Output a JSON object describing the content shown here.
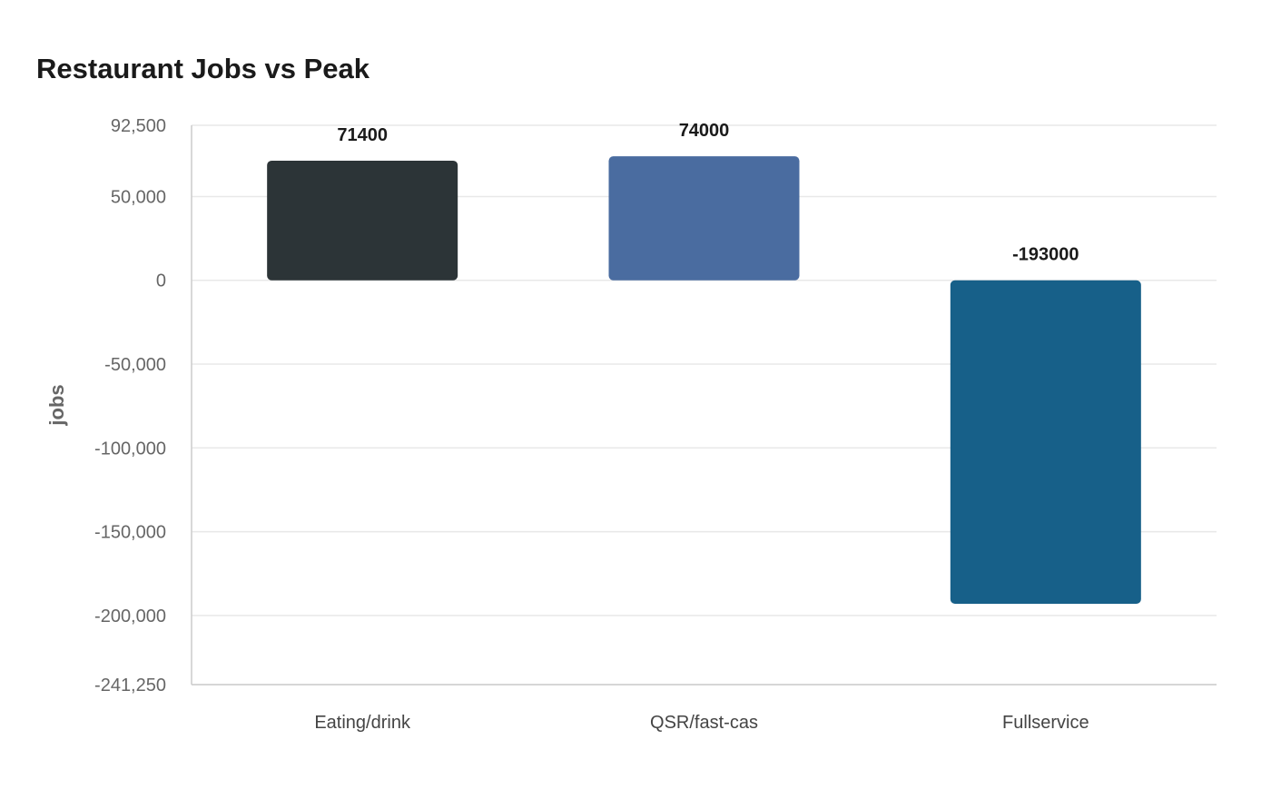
{
  "chart_data": {
    "type": "bar",
    "title": "Restaurant Jobs vs Peak",
    "xlabel": "",
    "ylabel": "jobs",
    "categories": [
      "Eating/drink",
      "QSR/fast-cas",
      "Fullservice"
    ],
    "values": [
      71400,
      74000,
      -193000
    ],
    "data_labels": [
      "71400",
      "74000",
      "-193000"
    ],
    "colors": [
      "#2c3437",
      "#4a6ca0",
      "#176089"
    ],
    "ylim": [
      -241250,
      92500
    ],
    "yticks": [
      92500,
      50000,
      0,
      -50000,
      -100000,
      -150000,
      -200000,
      -241250
    ],
    "ytick_labels": [
      "92,500",
      "50,000",
      "0",
      "-50,000",
      "-100,000",
      "-150,000",
      "-200,000",
      "-241,250"
    ],
    "grid": true,
    "legend": "none"
  }
}
